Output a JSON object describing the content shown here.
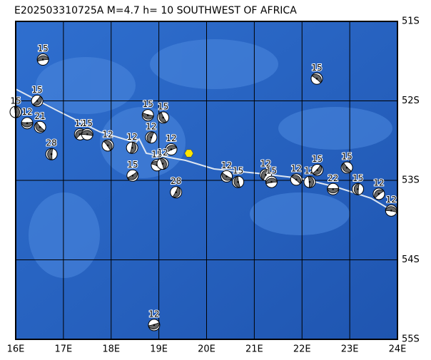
{
  "title": "E202503310725A M=4.7 h= 10 SOUTHWEST OF AFRICA",
  "map": {
    "lonlim": [
      16,
      24
    ],
    "latlim": [
      51,
      55
    ],
    "lonticks": [
      {
        "value": 16,
        "label": "16E"
      },
      {
        "value": 17,
        "label": "17E"
      },
      {
        "value": 18,
        "label": "18E"
      },
      {
        "value": 19,
        "label": "19E"
      },
      {
        "value": 20,
        "label": "20E"
      },
      {
        "value": 21,
        "label": "21E"
      },
      {
        "value": 22,
        "label": "22E"
      },
      {
        "value": 23,
        "label": "23E"
      },
      {
        "value": 24,
        "label": "24E"
      }
    ],
    "latticks": [
      {
        "value": 51,
        "label": "51S"
      },
      {
        "value": 52,
        "label": "52S"
      },
      {
        "value": 53,
        "label": "53S"
      },
      {
        "value": 54,
        "label": "54S"
      },
      {
        "value": 55,
        "label": "55S"
      }
    ],
    "grid": true
  },
  "epicenter": {
    "lon": 19.63,
    "lat": 52.66,
    "color": "#ffe600"
  },
  "events": [
    {
      "lon": 16.57,
      "lat": 51.48,
      "depth": 15
    },
    {
      "lon": 22.31,
      "lat": 51.72,
      "depth": 15
    },
    {
      "lon": 16.0,
      "lat": 52.14,
      "depth": 15
    },
    {
      "lon": 16.45,
      "lat": 52.0,
      "depth": 15
    },
    {
      "lon": 16.24,
      "lat": 52.28,
      "depth": 12
    },
    {
      "lon": 16.51,
      "lat": 52.33,
      "depth": 21
    },
    {
      "lon": 16.75,
      "lat": 52.67,
      "depth": 28
    },
    {
      "lon": 17.35,
      "lat": 52.42,
      "depth": 12
    },
    {
      "lon": 17.5,
      "lat": 52.42,
      "depth": 15
    },
    {
      "lon": 17.93,
      "lat": 52.56,
      "depth": 12
    },
    {
      "lon": 18.44,
      "lat": 52.59,
      "depth": 12
    },
    {
      "lon": 18.45,
      "lat": 52.94,
      "depth": 15
    },
    {
      "lon": 18.77,
      "lat": 52.18,
      "depth": 15
    },
    {
      "lon": 19.09,
      "lat": 52.21,
      "depth": 15
    },
    {
      "lon": 18.84,
      "lat": 52.46,
      "depth": 12
    },
    {
      "lon": 19.26,
      "lat": 52.61,
      "depth": 12
    },
    {
      "lon": 18.96,
      "lat": 52.81,
      "depth": 15
    },
    {
      "lon": 19.08,
      "lat": 52.79,
      "depth": 12
    },
    {
      "lon": 19.36,
      "lat": 53.15,
      "depth": 28
    },
    {
      "lon": 18.9,
      "lat": 54.82,
      "depth": 12
    },
    {
      "lon": 20.42,
      "lat": 52.95,
      "depth": 12
    },
    {
      "lon": 20.66,
      "lat": 53.02,
      "depth": 15
    },
    {
      "lon": 21.24,
      "lat": 52.93,
      "depth": 12
    },
    {
      "lon": 21.36,
      "lat": 53.02,
      "depth": 15
    },
    {
      "lon": 21.88,
      "lat": 52.99,
      "depth": 12
    },
    {
      "lon": 22.16,
      "lat": 53.02,
      "depth": 12
    },
    {
      "lon": 22.32,
      "lat": 52.87,
      "depth": 15
    },
    {
      "lon": 22.65,
      "lat": 53.11,
      "depth": 22
    },
    {
      "lon": 22.94,
      "lat": 52.84,
      "depth": 15
    },
    {
      "lon": 23.17,
      "lat": 53.11,
      "depth": 15
    },
    {
      "lon": 23.61,
      "lat": 53.17,
      "depth": 12
    },
    {
      "lon": 23.87,
      "lat": 53.38,
      "depth": 12
    }
  ]
}
